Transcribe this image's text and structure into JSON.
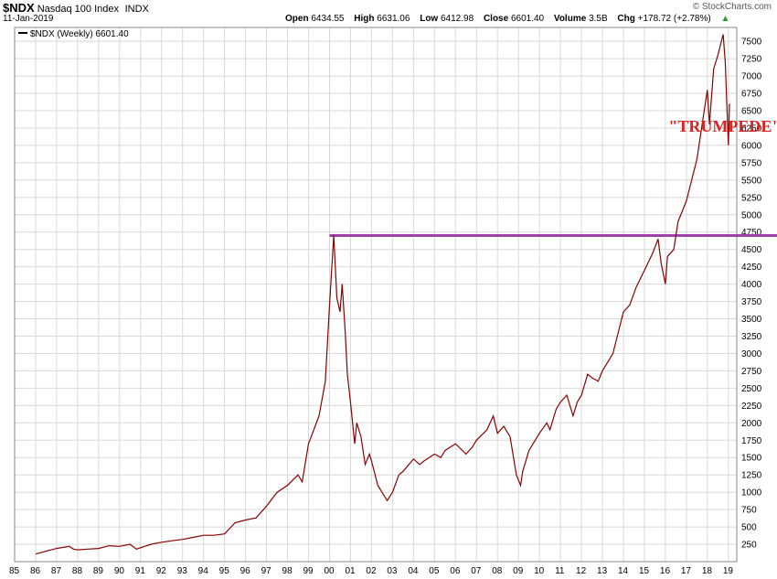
{
  "header": {
    "symbol": "$NDX",
    "name": "Nasdaq 100 Index",
    "exchange": "INDX",
    "date": "11-Jan-2019",
    "open_label": "Open",
    "open": "6434.55",
    "high_label": "High",
    "high": "6631.06",
    "low_label": "Low",
    "low": "6412.98",
    "close_label": "Close",
    "close": "6601.40",
    "volume_label": "Volume",
    "volume": "3.5B",
    "chg_label": "Chg",
    "chg": "+178.72 (+2.78%)",
    "up_glyph": "▲",
    "brand": "© StockCharts.com"
  },
  "colors": {
    "price_line": "#8b0000",
    "grid": "#d8d8d8",
    "resistance": "#a040a8",
    "annotation": "#e02020"
  },
  "chart_data": {
    "type": "line",
    "title": "$NDX Nasdaq 100 Index",
    "legend": "$NDX (Weekly) 6601.40",
    "legend_placement": "top-left",
    "xlabel": "",
    "ylabel": "",
    "x_ticks": [
      "85",
      "86",
      "87",
      "88",
      "89",
      "90",
      "91",
      "92",
      "93",
      "94",
      "95",
      "96",
      "97",
      "98",
      "99",
      "00",
      "01",
      "02",
      "03",
      "04",
      "05",
      "06",
      "07",
      "08",
      "09",
      "10",
      "11",
      "12",
      "13",
      "14",
      "15",
      "16",
      "17",
      "18",
      "19"
    ],
    "y_ticks": [
      250,
      500,
      750,
      1000,
      1250,
      1500,
      1750,
      2000,
      2250,
      2500,
      2750,
      3000,
      3250,
      3500,
      3750,
      4000,
      4250,
      4500,
      4750,
      5000,
      5250,
      5500,
      5750,
      6000,
      6250,
      6500,
      6750,
      7000,
      7250,
      7500
    ],
    "ylim": [
      0,
      7700
    ],
    "xlim": [
      1985.0,
      2019.4
    ],
    "grid": true,
    "series": [
      {
        "name": "$NDX (Weekly)",
        "x": [
          1986.0,
          1986.5,
          1987.0,
          1987.6,
          1987.8,
          1988.0,
          1988.5,
          1989.0,
          1989.5,
          1990.0,
          1990.5,
          1990.8,
          1991.0,
          1991.5,
          1992.0,
          1992.5,
          1993.0,
          1993.5,
          1994.0,
          1994.5,
          1995.0,
          1995.5,
          1996.0,
          1996.5,
          1997.0,
          1997.5,
          1998.0,
          1998.5,
          1998.7,
          1999.0,
          1999.5,
          1999.8,
          2000.0,
          2000.2,
          2000.35,
          2000.5,
          2000.6,
          2000.75,
          2000.85,
          2001.0,
          2001.2,
          2001.3,
          2001.5,
          2001.7,
          2001.9,
          2002.0,
          2002.3,
          2002.5,
          2002.75,
          2003.0,
          2003.3,
          2003.5,
          2004.0,
          2004.3,
          2004.5,
          2005.0,
          2005.3,
          2005.5,
          2006.0,
          2006.5,
          2006.8,
          2007.0,
          2007.5,
          2007.8,
          2008.0,
          2008.3,
          2008.6,
          2008.9,
          2009.1,
          2009.2,
          2009.5,
          2010.0,
          2010.35,
          2010.5,
          2010.8,
          2011.0,
          2011.3,
          2011.6,
          2011.8,
          2012.0,
          2012.3,
          2012.5,
          2012.8,
          2013.0,
          2013.5,
          2014.0,
          2014.3,
          2014.6,
          2015.0,
          2015.4,
          2015.65,
          2015.8,
          2016.0,
          2016.1,
          2016.4,
          2016.6,
          2017.0,
          2017.5,
          2018.0,
          2018.1,
          2018.3,
          2018.5,
          2018.75,
          2018.85,
          2019.0,
          2019.05
        ],
        "values": [
          110,
          150,
          190,
          220,
          180,
          170,
          180,
          190,
          230,
          220,
          250,
          180,
          200,
          250,
          280,
          300,
          320,
          350,
          380,
          380,
          400,
          560,
          600,
          630,
          800,
          1000,
          1100,
          1250,
          1150,
          1700,
          2100,
          2600,
          3700,
          4700,
          3800,
          3600,
          4000,
          3300,
          2700,
          2300,
          1700,
          2000,
          1800,
          1400,
          1550,
          1450,
          1100,
          1000,
          880,
          1000,
          1250,
          1300,
          1480,
          1400,
          1450,
          1550,
          1500,
          1600,
          1700,
          1550,
          1650,
          1750,
          1900,
          2100,
          1850,
          1950,
          1800,
          1250,
          1100,
          1300,
          1600,
          1850,
          2000,
          1900,
          2200,
          2300,
          2400,
          2100,
          2300,
          2400,
          2700,
          2650,
          2600,
          2750,
          3000,
          3600,
          3700,
          3950,
          4200,
          4450,
          4650,
          4300,
          4000,
          4400,
          4500,
          4900,
          5200,
          5800,
          6800,
          6300,
          7100,
          7300,
          7600,
          7200,
          6000,
          6600
        ]
      }
    ],
    "annotations": [
      {
        "text": "\"TRUMPEDE\"",
        "x": 2016.15,
        "y": 6200
      },
      {
        "type": "hline",
        "y": 4700,
        "x_start": 2000.0,
        "x_end": 2019.4
      }
    ]
  }
}
